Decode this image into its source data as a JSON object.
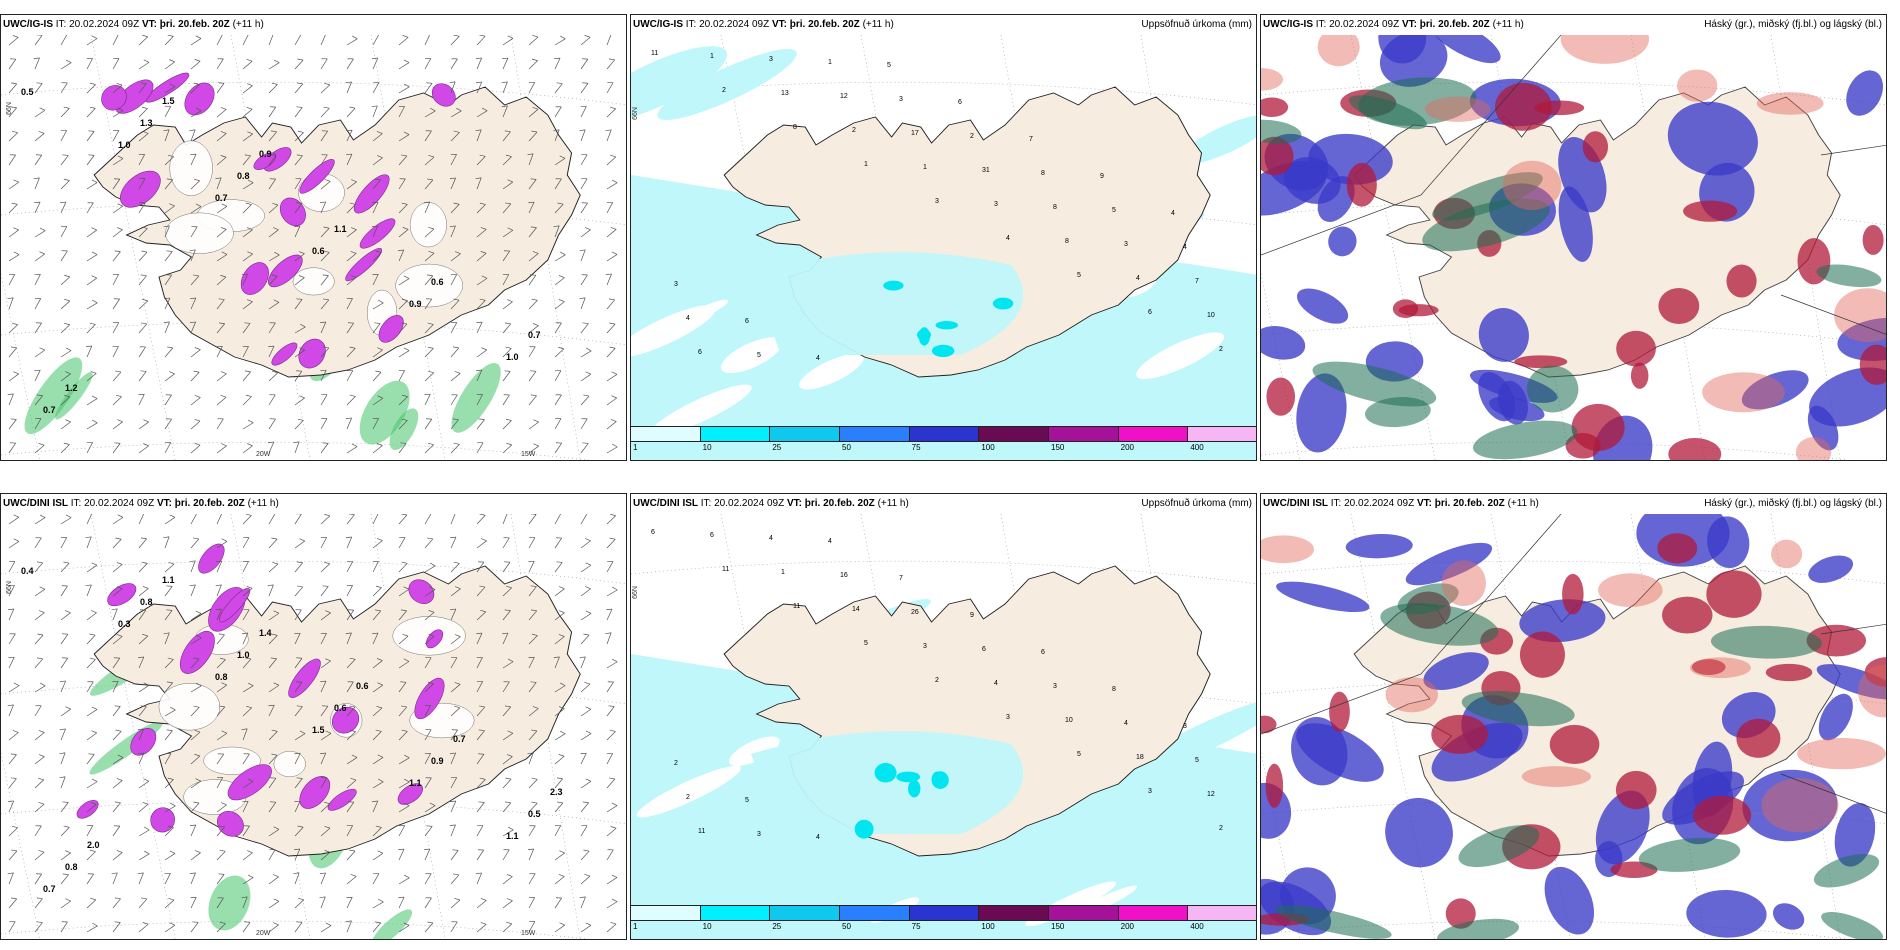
{
  "rows": [
    {
      "panels": [
        {
          "id": "r1-wind",
          "title_prefix": "UWC/IG-IS",
          "it_label": "IT:",
          "it_value": "20.02.2024 09Z",
          "vt_label": "VT:",
          "vt_value": "þri. 20.feb. 20Z",
          "offset": "(+11 h)",
          "right_label": "",
          "type": "wind"
        },
        {
          "id": "r1-precip",
          "title_prefix": "UWC/IG-IS",
          "it_label": "IT:",
          "it_value": "20.02.2024 09Z",
          "vt_label": "VT:",
          "vt_value": "þri. 20.feb. 20Z",
          "offset": "(+11 h)",
          "right_label": "Uppsöfnuð úrkoma (mm)",
          "type": "precip"
        },
        {
          "id": "r1-cloud",
          "title_prefix": "UWC/IG-IS",
          "it_label": "IT:",
          "it_value": "20.02.2024 09Z",
          "vt_label": "VT:",
          "vt_value": "þri. 20.feb. 20Z",
          "offset": "(+11 h)",
          "right_label": "Háský (gr.), miðský (fj.bl.) og lágský (bl.)",
          "type": "cloud"
        }
      ]
    },
    {
      "panels": [
        {
          "id": "r2-wind",
          "title_prefix": "UWC/DINI ISL",
          "it_label": "IT:",
          "it_value": "20.02.2024 09Z",
          "vt_label": "VT:",
          "vt_value": "þri. 20.feb. 20Z",
          "offset": "(+11 h)",
          "right_label": "",
          "type": "wind"
        },
        {
          "id": "r2-precip",
          "title_prefix": "UWC/DINI ISL",
          "it_label": "IT:",
          "it_value": "20.02.2024 09Z",
          "vt_label": "VT:",
          "vt_value": "þri. 20.feb. 20Z",
          "offset": "(+11 h)",
          "right_label": "Uppsöfnuð úrkoma (mm)",
          "type": "precip"
        },
        {
          "id": "r2-cloud",
          "title_prefix": "UWC/DINI ISL",
          "it_label": "IT:",
          "it_value": "20.02.2024 09Z",
          "vt_label": "VT:",
          "vt_value": "þri. 20.feb. 20Z",
          "offset": "(+11 h)",
          "right_label": "Háský (gr.), miðský (fj.bl.) og lágský (bl.)",
          "type": "cloud"
        }
      ]
    }
  ],
  "axis_labels": {
    "lat": "66N",
    "lon1": "20W",
    "lon2": "15W"
  },
  "colorbar": {
    "labels": [
      "1",
      "10",
      "25",
      "50",
      "75",
      "100",
      "150",
      "200",
      "400"
    ],
    "colors": [
      "#dffcff",
      "#00f0ff",
      "#10c8ee",
      "#2a7fff",
      "#2a35d0",
      "#6a0a52",
      "#a4129a",
      "#f010c8",
      "#f6b6f4"
    ]
  },
  "colors": {
    "land": "#f7ece0",
    "sea": "#ffffff",
    "precip_light": "#bff7fa",
    "wind_magenta": "#d048e6",
    "cloud_high": "#1e6e54",
    "cloud_mid": "#b01a3a",
    "cloud_low": "#3a3ac8"
  },
  "precip_numbers_r1": [
    "11",
    "2",
    "8",
    "1",
    "3",
    "4",
    "5",
    "6",
    "2",
    "1",
    "13",
    "2",
    "1",
    "3",
    "8",
    "4",
    "10",
    "6",
    "3",
    "12",
    "17",
    "31",
    "8",
    "3",
    "7",
    "4",
    "5",
    "1",
    "3",
    "2",
    "8",
    "5",
    "4",
    "3",
    "6",
    "4",
    "5",
    "6",
    "7",
    "9",
    "4"
  ],
  "precip_numbers_r2": [
    "6",
    "11",
    "11",
    "5",
    "2",
    "3",
    "5",
    "3",
    "2",
    "6",
    "1",
    "14",
    "3",
    "4",
    "10",
    "18",
    "12",
    "11",
    "4",
    "16",
    "26",
    "6",
    "3",
    "4",
    "5",
    "2",
    "3",
    "4",
    "7",
    "9",
    "6",
    "8",
    "3",
    "2",
    "5",
    "4"
  ],
  "wind_labels_r1": [
    "0.5",
    "1.0",
    "0.7",
    "0.6",
    "0.9",
    "1.0",
    "0.7",
    "1.3",
    "0.8",
    "1.1",
    "0.6",
    "0.7",
    "1.2",
    "1.5",
    "0.9"
  ],
  "wind_labels_r2": [
    "0.4",
    "0.3",
    "0.8",
    "1.5",
    "1.1",
    "1.1",
    "0.7",
    "0.8",
    "1.0",
    "0.6",
    "0.9",
    "0.5",
    "0.8",
    "1.1",
    "1.4",
    "0.6",
    "0.7",
    "2.3",
    "2.0"
  ]
}
